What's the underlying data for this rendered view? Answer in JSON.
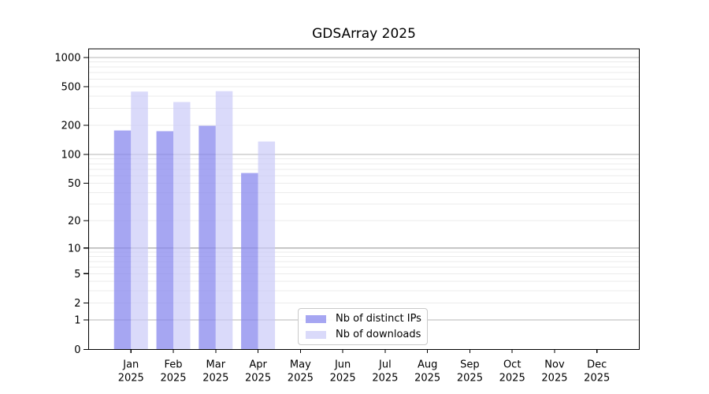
{
  "chart_data": {
    "type": "bar",
    "title": "GDSArray 2025",
    "categories": [
      {
        "month": "Jan",
        "year": "2025"
      },
      {
        "month": "Feb",
        "year": "2025"
      },
      {
        "month": "Mar",
        "year": "2025"
      },
      {
        "month": "Apr",
        "year": "2025"
      },
      {
        "month": "May",
        "year": "2025"
      },
      {
        "month": "Jun",
        "year": "2025"
      },
      {
        "month": "Jul",
        "year": "2025"
      },
      {
        "month": "Aug",
        "year": "2025"
      },
      {
        "month": "Sep",
        "year": "2025"
      },
      {
        "month": "Oct",
        "year": "2025"
      },
      {
        "month": "Nov",
        "year": "2025"
      },
      {
        "month": "Dec",
        "year": "2025"
      }
    ],
    "series": [
      {
        "name": "Nb of distinct IPs",
        "color": "#8888ee",
        "fill_opacity": 0.75,
        "values": [
          177,
          174,
          198,
          64,
          null,
          null,
          null,
          null,
          null,
          null,
          null,
          null
        ]
      },
      {
        "name": "Nb of downloads",
        "color": "#c8c8f8",
        "fill_opacity": 0.68,
        "values": [
          446,
          348,
          450,
          136,
          null,
          null,
          null,
          null,
          null,
          null,
          null,
          null
        ]
      }
    ],
    "y_axis": {
      "scale": "log10(1+x)",
      "ticks": [
        0,
        1,
        2,
        5,
        10,
        20,
        50,
        100,
        200,
        500,
        1000
      ],
      "top_value": 1220,
      "major_gridlines": [
        1,
        10,
        100,
        1000
      ],
      "minor_gridlines": [
        2,
        3,
        4,
        5,
        6,
        7,
        8,
        9,
        20,
        30,
        40,
        50,
        60,
        70,
        80,
        90,
        200,
        300,
        400,
        500,
        600,
        700,
        800,
        900
      ]
    },
    "xlabel": "",
    "ylabel": "",
    "legend_position": "lower center inside plot",
    "grid": "horizontal major and minor",
    "colors": {
      "major_grid": "#b4b4b4",
      "minor_grid": "#ebebeb",
      "spine": "#000000",
      "text": "#000000",
      "background": "#ffffff"
    }
  }
}
